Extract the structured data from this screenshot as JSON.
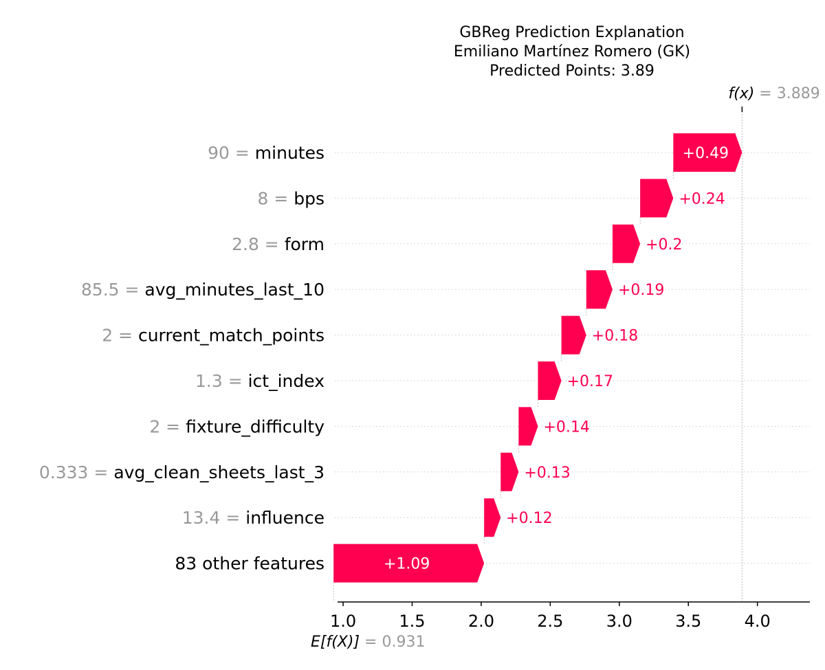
{
  "colors": {
    "positive": "#ff0051",
    "gray_text": "#999999",
    "grid": "#cccccc",
    "axis": "#000000"
  },
  "chart_data": {
    "type": "waterfall",
    "title_lines": [
      "GBReg Prediction Explanation",
      "Emiliano Martínez Romero (GK)",
      "Predicted Points: 3.89"
    ],
    "base_value": 0.931,
    "base_value_label": "0.931",
    "base_label": "E[f(X)]",
    "output_value": 3.889,
    "output_value_label": "3.889",
    "output_label": "f(x)",
    "xlim": [
      0.94,
      4.38
    ],
    "xticks": [
      1.0,
      1.5,
      2.0,
      2.5,
      3.0,
      3.5,
      4.0
    ],
    "xtick_labels": [
      "1.0",
      "1.5",
      "2.0",
      "2.5",
      "3.0",
      "3.5",
      "4.0"
    ],
    "features": [
      {
        "value": "90",
        "name": "minutes",
        "contribution": 0.49,
        "label": "+0.49"
      },
      {
        "value": "8",
        "name": "bps",
        "contribution": 0.24,
        "label": "+0.24"
      },
      {
        "value": "2.8",
        "name": "form",
        "contribution": 0.2,
        "label": "+0.2"
      },
      {
        "value": "85.5",
        "name": "avg_minutes_last_10",
        "contribution": 0.19,
        "label": "+0.19"
      },
      {
        "value": "2",
        "name": "current_match_points",
        "contribution": 0.18,
        "label": "+0.18"
      },
      {
        "value": "1.3",
        "name": "ict_index",
        "contribution": 0.17,
        "label": "+0.17"
      },
      {
        "value": "2",
        "name": "fixture_difficulty",
        "contribution": 0.14,
        "label": "+0.14"
      },
      {
        "value": "0.333",
        "name": "avg_clean_sheets_last_3",
        "contribution": 0.13,
        "label": "+0.13"
      },
      {
        "value": "13.4",
        "name": "influence",
        "contribution": 0.12,
        "label": "+0.12"
      },
      {
        "value": "",
        "name": "83 other features",
        "contribution": 1.09,
        "label": "+1.09"
      }
    ]
  }
}
